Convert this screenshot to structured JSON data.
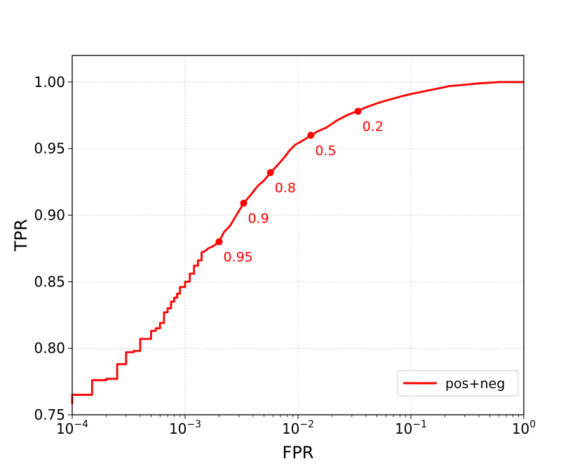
{
  "chart_data": {
    "type": "line",
    "xscale": "log",
    "xlim": [
      0.0001,
      1
    ],
    "ylim": [
      0.75,
      1.02
    ],
    "xlabel": "FPR",
    "ylabel": "TPR",
    "grid": true,
    "legend_position": "lower-right",
    "x_ticks": [
      {
        "base": "10",
        "exp": "−4"
      },
      {
        "base": "10",
        "exp": "−3"
      },
      {
        "base": "10",
        "exp": "−2"
      },
      {
        "base": "10",
        "exp": "−1"
      },
      {
        "base": "10",
        "exp": "0"
      }
    ],
    "y_ticks": [
      "0.75",
      "0.80",
      "0.85",
      "0.90",
      "0.95",
      "1.00"
    ],
    "y_tick_values": [
      0.75,
      0.8,
      0.85,
      0.9,
      0.95,
      1.0
    ],
    "series": [
      {
        "name": "pos+neg",
        "color": "#ff0000",
        "x": [
          0.0001,
          0.0001,
          0.00015,
          0.00015,
          0.0002,
          0.0002,
          0.00025,
          0.00025,
          0.0003,
          0.0003,
          0.00035,
          0.00035,
          0.0004,
          0.0004,
          0.0005,
          0.0005,
          0.00055,
          0.00055,
          0.0006,
          0.0006,
          0.00065,
          0.00065,
          0.0007,
          0.0007,
          0.00075,
          0.00075,
          0.0008,
          0.0008,
          0.00085,
          0.00085,
          0.0009,
          0.0009,
          0.001,
          0.001,
          0.0011,
          0.0011,
          0.0012,
          0.0012,
          0.0013,
          0.0013,
          0.0014,
          0.0014,
          0.0015,
          0.0016,
          0.0018,
          0.002,
          0.0022,
          0.0025,
          0.0028,
          0.0033,
          0.0038,
          0.0044,
          0.005,
          0.0057,
          0.0065,
          0.0075,
          0.0085,
          0.0095,
          0.0105,
          0.0115,
          0.013,
          0.015,
          0.018,
          0.022,
          0.027,
          0.033,
          0.04,
          0.05,
          0.06,
          0.08,
          0.1,
          0.13,
          0.17,
          0.22,
          0.3,
          0.4,
          0.5,
          0.6,
          0.8,
          1.0
        ],
        "y": [
          0.758,
          0.765,
          0.765,
          0.776,
          0.776,
          0.777,
          0.777,
          0.788,
          0.788,
          0.797,
          0.797,
          0.798,
          0.798,
          0.807,
          0.807,
          0.813,
          0.813,
          0.815,
          0.815,
          0.819,
          0.819,
          0.827,
          0.827,
          0.83,
          0.83,
          0.835,
          0.835,
          0.838,
          0.838,
          0.841,
          0.841,
          0.846,
          0.846,
          0.85,
          0.85,
          0.856,
          0.856,
          0.862,
          0.862,
          0.866,
          0.866,
          0.872,
          0.873,
          0.875,
          0.877,
          0.88,
          0.887,
          0.892,
          0.899,
          0.909,
          0.915,
          0.922,
          0.926,
          0.932,
          0.937,
          0.943,
          0.949,
          0.953,
          0.955,
          0.957,
          0.96,
          0.963,
          0.966,
          0.971,
          0.975,
          0.978,
          0.981,
          0.984,
          0.986,
          0.989,
          0.991,
          0.993,
          0.995,
          0.997,
          0.998,
          0.999,
          0.9995,
          1.0,
          1.0,
          1.0
        ]
      }
    ],
    "annotations": [
      {
        "label": "0.95",
        "x": 0.002,
        "y": 0.88
      },
      {
        "label": "0.9",
        "x": 0.0033,
        "y": 0.909
      },
      {
        "label": "0.8",
        "x": 0.0057,
        "y": 0.932
      },
      {
        "label": "0.5",
        "x": 0.013,
        "y": 0.96
      },
      {
        "label": "0.2",
        "x": 0.034,
        "y": 0.978
      }
    ]
  }
}
